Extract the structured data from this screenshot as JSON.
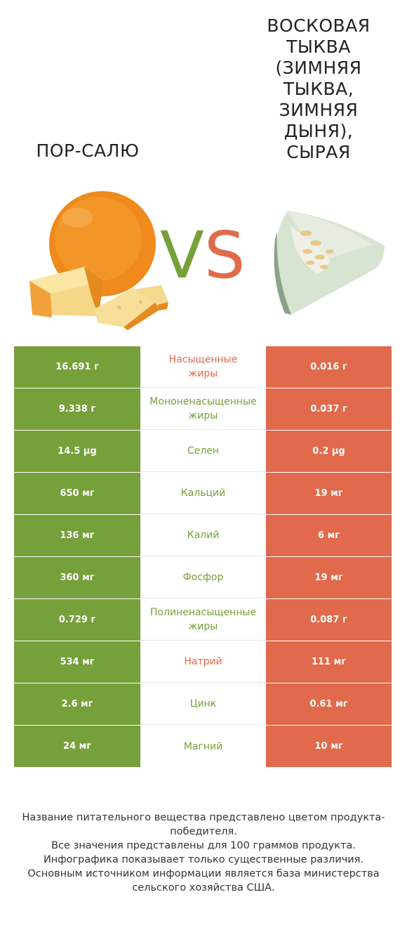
{
  "title_left": "ПОР-САЛЮ",
  "title_right": "ВОСКОВАЯ ТЫКВА (ЗИМНЯЯ ТЫКВА, ЗИМНЯЯ ДЫНЯ), СЫРАЯ",
  "vs": {
    "v": "V",
    "s": "S"
  },
  "colors": {
    "green": "#76a03a",
    "red": "#e06a4b"
  },
  "rows": [
    {
      "left": "16.691 г",
      "nutrient": "Насыщенные жиры",
      "right": "0.016 г",
      "winner": "red"
    },
    {
      "left": "9.338 г",
      "nutrient": "Мононенасыщенные жиры",
      "right": "0.037 г",
      "winner": "green"
    },
    {
      "left": "14.5 µg",
      "nutrient": "Селен",
      "right": "0.2 µg",
      "winner": "green"
    },
    {
      "left": "650 мг",
      "nutrient": "Кальций",
      "right": "19 мг",
      "winner": "green"
    },
    {
      "left": "136 мг",
      "nutrient": "Калий",
      "right": "6 мг",
      "winner": "green"
    },
    {
      "left": "360 мг",
      "nutrient": "Фосфор",
      "right": "19 мг",
      "winner": "green"
    },
    {
      "left": "0.729 г",
      "nutrient": "Полиненасыщенные жиры",
      "right": "0.087 г",
      "winner": "green"
    },
    {
      "left": "534 мг",
      "nutrient": "Натрий",
      "right": "111 мг",
      "winner": "red"
    },
    {
      "left": "2.6 мг",
      "nutrient": "Цинк",
      "right": "0.61 мг",
      "winner": "green"
    },
    {
      "left": "24 мг",
      "nutrient": "Магний",
      "right": "10 мг",
      "winner": "green"
    }
  ],
  "footer": [
    "Название питательного вещества представлено цветом продукта-победителя.",
    "Все значения представлены для 100 граммов продукта.",
    "Инфографика показывает только существенные различия.",
    "Основным источником информации является база министерства сельского хозяйства США."
  ]
}
